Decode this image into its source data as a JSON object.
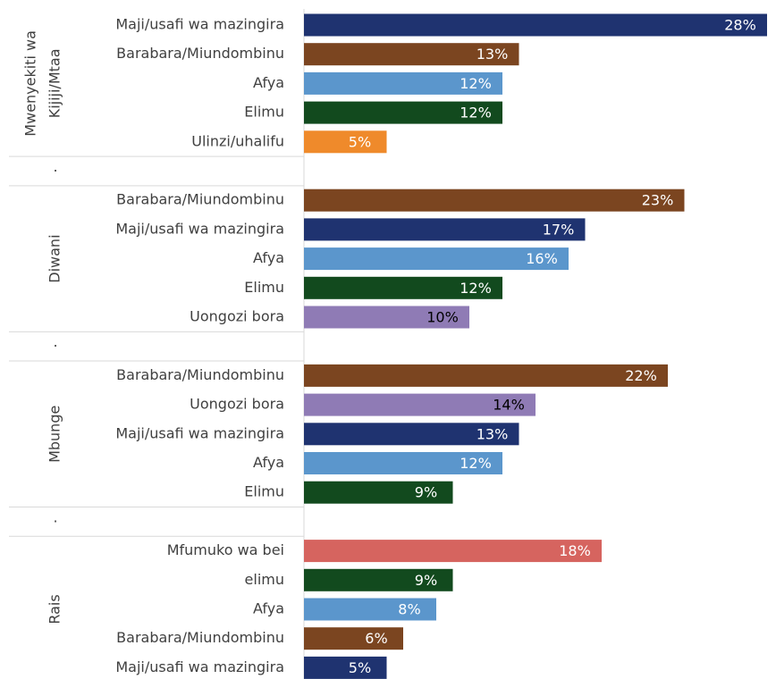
{
  "chart_data": {
    "type": "grouped-hbar",
    "xlim": [
      0,
      28
    ],
    "separators": [
      ".",
      ".",
      "."
    ],
    "groups": [
      {
        "name_lines": [
          "Mwenyekiti wa",
          "Kijiji/Mtaa"
        ],
        "categories": [
          "Maji/usafi wa mazingira",
          "Barabara/Miundombinu",
          "Afya",
          "Elimu",
          "Ulinzi/uhalifu"
        ],
        "values": [
          28,
          13,
          12,
          12,
          5
        ],
        "value_labels": [
          "28%",
          "13%",
          "12%",
          "12%",
          "5%"
        ],
        "colors": [
          "#1f3370",
          "#7b4520",
          "#5b96cc",
          "#124a1e",
          "#ef8a2b"
        ]
      },
      {
        "name_lines": [
          "Diwani"
        ],
        "categories": [
          "Barabara/Miundombinu",
          "Maji/usafi wa mazingira",
          "Afya",
          "Elimu",
          "Uongozi bora"
        ],
        "values": [
          23,
          17,
          16,
          12,
          10
        ],
        "value_labels": [
          "23%",
          "17%",
          "16%",
          "12%",
          "10%"
        ],
        "colors": [
          "#7b4520",
          "#1f3370",
          "#5b96cc",
          "#124a1e",
          "#8f7bb5"
        ]
      },
      {
        "name_lines": [
          "Mbunge"
        ],
        "categories": [
          "Barabara/Miundombinu",
          "Uongozi bora",
          "Maji/usafi wa mazingira",
          "Afya",
          "Elimu"
        ],
        "values": [
          22,
          14,
          13,
          12,
          9
        ],
        "value_labels": [
          "22%",
          "14%",
          "13%",
          "12%",
          "9%"
        ],
        "colors": [
          "#7b4520",
          "#8f7bb5",
          "#1f3370",
          "#5b96cc",
          "#124a1e"
        ]
      },
      {
        "name_lines": [
          "Rais"
        ],
        "categories": [
          "Mfumuko wa bei",
          "elimu",
          "Afya",
          "Barabara/Miundombinu",
          "Maji/usafi wa mazingira"
        ],
        "values": [
          18,
          9,
          8,
          6,
          5
        ],
        "value_labels": [
          "18%",
          "9%",
          "8%",
          "6%",
          "5%"
        ],
        "colors": [
          "#d6645f",
          "#124a1e",
          "#5b96cc",
          "#7b4520",
          "#1f3370"
        ]
      }
    ]
  }
}
